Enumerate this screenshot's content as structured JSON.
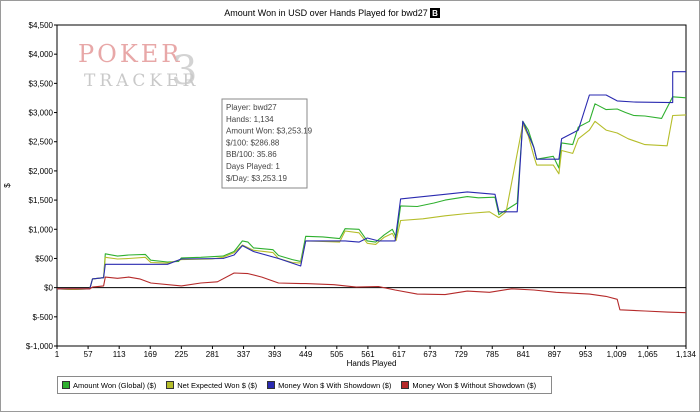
{
  "colors": {
    "global": "#2fb02f",
    "expected": "#b5bd2a",
    "showdown": "#2a2ab0",
    "no_showdown": "#b52a2a",
    "zero_line": "#000000",
    "watermark": "#e8a8a8",
    "watermark_alt": "#c9c9c9"
  },
  "watermark": {
    "line1": "POKER",
    "line2": "TRACKER",
    "mark": "3"
  },
  "tooltip": {
    "lines": [
      "Player: bwd27",
      "Hands: 1,134",
      "Amount Won: $3,253.19",
      "$/100: $286.88",
      "BB/100: 35.86",
      "Days Played: 1",
      "$/Day: $3,253.19"
    ]
  },
  "legend": [
    {
      "label": "Amount Won (Global) ($)",
      "color": "#2fb02f"
    },
    {
      "label": "Net Expected Won $ ($)",
      "color": "#b5bd2a"
    },
    {
      "label": "Money Won $ With Showdown ($)",
      "color": "#2a2ab0"
    },
    {
      "label": "Money Won $ Without Showdown ($)",
      "color": "#b52a2a"
    }
  ],
  "chart_data": {
    "type": "line",
    "title": "Amount Won in USD over Hands Played for bwd27",
    "title_badge": "B",
    "xlabel": "Hands Played",
    "ylabel": "$",
    "xlim": [
      1,
      1134
    ],
    "ylim": [
      -1000,
      4500
    ],
    "x_ticks": [
      1,
      57,
      113,
      169,
      225,
      281,
      337,
      393,
      449,
      505,
      561,
      617,
      673,
      729,
      785,
      841,
      897,
      953,
      1009,
      1065,
      1134
    ],
    "x_tick_labels": [
      "1",
      "57",
      "113",
      "169",
      "225",
      "281",
      "337",
      "393",
      "449",
      "505",
      "561",
      "617",
      "673",
      "729",
      "785",
      "841",
      "897",
      "953",
      "1,009",
      "1,065",
      "1,134"
    ],
    "y_ticks": [
      -1000,
      -500,
      0,
      500,
      1000,
      1500,
      2000,
      2500,
      3000,
      3500,
      4000,
      4500
    ],
    "y_tick_labels": [
      "$-1,000",
      "$-500",
      "$0",
      "$500",
      "$1,000",
      "$1,500",
      "$2,000",
      "$2,500",
      "$3,000",
      "$3,500",
      "$4,000",
      "$4,500"
    ],
    "legend_position": "bottom",
    "grid": false,
    "series": [
      {
        "name": "Amount Won (Global) ($)",
        "color": "#2fb02f",
        "points": [
          [
            1,
            -20
          ],
          [
            30,
            -30
          ],
          [
            60,
            -20
          ],
          [
            65,
            150
          ],
          [
            85,
            170
          ],
          [
            88,
            580
          ],
          [
            110,
            540
          ],
          [
            130,
            560
          ],
          [
            160,
            570
          ],
          [
            170,
            470
          ],
          [
            200,
            440
          ],
          [
            220,
            450
          ],
          [
            225,
            510
          ],
          [
            260,
            520
          ],
          [
            300,
            540
          ],
          [
            320,
            620
          ],
          [
            335,
            800
          ],
          [
            345,
            780
          ],
          [
            355,
            680
          ],
          [
            390,
            650
          ],
          [
            400,
            550
          ],
          [
            425,
            480
          ],
          [
            440,
            450
          ],
          [
            449,
            880
          ],
          [
            480,
            870
          ],
          [
            510,
            840
          ],
          [
            520,
            1010
          ],
          [
            545,
            1000
          ],
          [
            560,
            800
          ],
          [
            575,
            780
          ],
          [
            590,
            900
          ],
          [
            605,
            1000
          ],
          [
            612,
            860
          ],
          [
            620,
            1400
          ],
          [
            650,
            1390
          ],
          [
            680,
            1450
          ],
          [
            700,
            1500
          ],
          [
            740,
            1560
          ],
          [
            760,
            1540
          ],
          [
            790,
            1550
          ],
          [
            797,
            1250
          ],
          [
            810,
            1330
          ],
          [
            830,
            1450
          ],
          [
            840,
            2850
          ],
          [
            850,
            2700
          ],
          [
            860,
            2400
          ],
          [
            865,
            2200
          ],
          [
            895,
            2250
          ],
          [
            905,
            2050
          ],
          [
            910,
            2480
          ],
          [
            930,
            2450
          ],
          [
            940,
            2750
          ],
          [
            960,
            2850
          ],
          [
            970,
            3150
          ],
          [
            980,
            3100
          ],
          [
            990,
            3050
          ],
          [
            1010,
            3060
          ],
          [
            1025,
            3000
          ],
          [
            1040,
            2950
          ],
          [
            1060,
            2940
          ],
          [
            1090,
            2900
          ],
          [
            1110,
            3270
          ],
          [
            1134,
            3253
          ]
        ]
      },
      {
        "name": "Net Expected Won $ ($)",
        "color": "#b5bd2a",
        "points": [
          [
            1,
            -20
          ],
          [
            30,
            -30
          ],
          [
            60,
            -20
          ],
          [
            65,
            150
          ],
          [
            85,
            170
          ],
          [
            88,
            520
          ],
          [
            110,
            490
          ],
          [
            130,
            500
          ],
          [
            160,
            520
          ],
          [
            170,
            430
          ],
          [
            200,
            420
          ],
          [
            225,
            480
          ],
          [
            280,
            490
          ],
          [
            300,
            520
          ],
          [
            320,
            600
          ],
          [
            335,
            730
          ],
          [
            355,
            640
          ],
          [
            390,
            600
          ],
          [
            400,
            500
          ],
          [
            425,
            430
          ],
          [
            440,
            420
          ],
          [
            449,
            800
          ],
          [
            480,
            790
          ],
          [
            510,
            780
          ],
          [
            520,
            970
          ],
          [
            545,
            940
          ],
          [
            560,
            760
          ],
          [
            575,
            740
          ],
          [
            590,
            860
          ],
          [
            605,
            930
          ],
          [
            612,
            810
          ],
          [
            620,
            1150
          ],
          [
            660,
            1180
          ],
          [
            700,
            1230
          ],
          [
            740,
            1270
          ],
          [
            780,
            1300
          ],
          [
            797,
            1200
          ],
          [
            810,
            1300
          ],
          [
            840,
            2800
          ],
          [
            850,
            2600
          ],
          [
            860,
            2250
          ],
          [
            865,
            2100
          ],
          [
            895,
            2100
          ],
          [
            905,
            1950
          ],
          [
            910,
            2350
          ],
          [
            930,
            2300
          ],
          [
            940,
            2550
          ],
          [
            960,
            2700
          ],
          [
            970,
            2850
          ],
          [
            990,
            2700
          ],
          [
            1010,
            2650
          ],
          [
            1030,
            2550
          ],
          [
            1060,
            2450
          ],
          [
            1100,
            2430
          ],
          [
            1110,
            2950
          ],
          [
            1134,
            2960
          ]
        ]
      },
      {
        "name": "Money Won $ With Showdown ($)",
        "color": "#2a2ab0",
        "points": [
          [
            1,
            -20
          ],
          [
            60,
            -20
          ],
          [
            65,
            150
          ],
          [
            85,
            170
          ],
          [
            88,
            400
          ],
          [
            170,
            400
          ],
          [
            200,
            400
          ],
          [
            225,
            490
          ],
          [
            300,
            500
          ],
          [
            320,
            560
          ],
          [
            335,
            720
          ],
          [
            355,
            620
          ],
          [
            400,
            500
          ],
          [
            440,
            370
          ],
          [
            449,
            800
          ],
          [
            520,
            800
          ],
          [
            545,
            780
          ],
          [
            560,
            850
          ],
          [
            580,
            800
          ],
          [
            610,
            800
          ],
          [
            620,
            1520
          ],
          [
            700,
            1600
          ],
          [
            740,
            1640
          ],
          [
            790,
            1600
          ],
          [
            797,
            1300
          ],
          [
            830,
            1300
          ],
          [
            840,
            2850
          ],
          [
            860,
            2400
          ],
          [
            865,
            2200
          ],
          [
            905,
            2200
          ],
          [
            910,
            2550
          ],
          [
            940,
            2700
          ],
          [
            960,
            3300
          ],
          [
            990,
            3300
          ],
          [
            1010,
            3200
          ],
          [
            1040,
            3180
          ],
          [
            1110,
            3170
          ],
          [
            1110,
            3700
          ],
          [
            1134,
            3700
          ]
        ]
      },
      {
        "name": "Money Won $ Without Showdown ($)",
        "color": "#b52a2a",
        "points": [
          [
            1,
            -20
          ],
          [
            60,
            -20
          ],
          [
            65,
            10
          ],
          [
            85,
            30
          ],
          [
            88,
            180
          ],
          [
            110,
            160
          ],
          [
            130,
            180
          ],
          [
            150,
            150
          ],
          [
            170,
            80
          ],
          [
            225,
            30
          ],
          [
            260,
            80
          ],
          [
            290,
            100
          ],
          [
            320,
            250
          ],
          [
            345,
            240
          ],
          [
            370,
            180
          ],
          [
            400,
            80
          ],
          [
            440,
            70
          ],
          [
            449,
            70
          ],
          [
            500,
            50
          ],
          [
            540,
            10
          ],
          [
            580,
            20
          ],
          [
            610,
            -40
          ],
          [
            650,
            -110
          ],
          [
            700,
            -120
          ],
          [
            740,
            -60
          ],
          [
            780,
            -80
          ],
          [
            820,
            -20
          ],
          [
            860,
            -40
          ],
          [
            900,
            -80
          ],
          [
            960,
            -110
          ],
          [
            990,
            -150
          ],
          [
            1010,
            -200
          ],
          [
            1015,
            -380
          ],
          [
            1060,
            -400
          ],
          [
            1100,
            -420
          ],
          [
            1134,
            -430
          ]
        ]
      }
    ]
  }
}
